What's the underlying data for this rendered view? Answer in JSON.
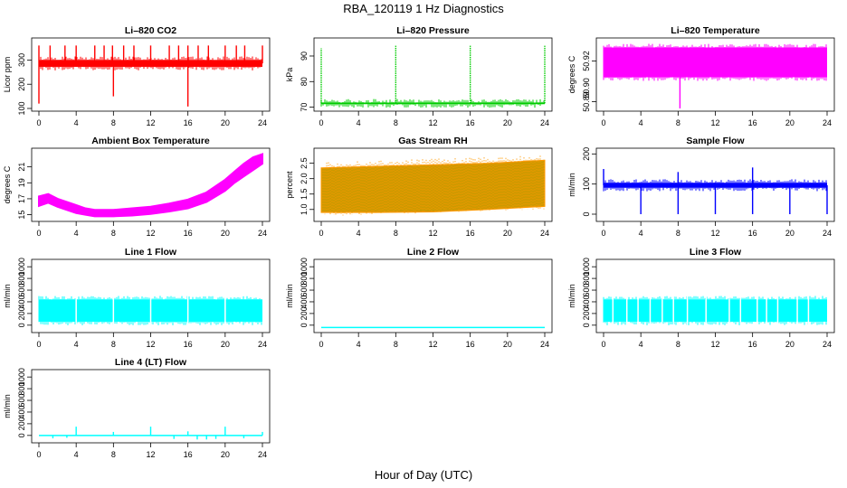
{
  "page": {
    "main_title": "RBA_120119  1 Hz Diagnostics",
    "x_axis_label": "Hour of Day (UTC)"
  },
  "chart_data": [
    {
      "type": "line",
      "title": "Li–820 CO2",
      "ylabel": "Licor ppm",
      "color": "#ff0000",
      "xlim": [
        0,
        24
      ],
      "xticks": [
        0,
        4,
        8,
        12,
        16,
        20,
        24
      ],
      "xtick_labels": [
        "0",
        "4",
        "8",
        "12",
        "16",
        "20",
        "24"
      ],
      "ylim": [
        100,
        380
      ],
      "yticks": [
        100,
        200,
        300
      ],
      "ytick_labels": [
        "100",
        "200",
        "300"
      ],
      "band": {
        "start": 0,
        "end": 24,
        "lo": 272,
        "hi": 300
      },
      "spikes": [
        [
          0,
          120
        ],
        [
          0,
          360
        ],
        [
          1.2,
          360
        ],
        [
          2.8,
          360
        ],
        [
          4,
          360
        ],
        [
          6,
          360
        ],
        [
          7,
          360
        ],
        [
          7.9,
          360
        ],
        [
          8,
          150
        ],
        [
          9.1,
          360
        ],
        [
          10.2,
          360
        ],
        [
          12,
          360
        ],
        [
          14,
          360
        ],
        [
          15,
          360
        ],
        [
          16,
          108
        ],
        [
          16,
          360
        ],
        [
          17.1,
          360
        ],
        [
          18.2,
          360
        ],
        [
          20,
          360
        ],
        [
          21.2,
          360
        ],
        [
          22.1,
          360
        ],
        [
          24,
          360
        ]
      ]
    },
    {
      "type": "line",
      "title": "Li–820 Pressure",
      "ylabel": "kPa",
      "color": "#00cc00",
      "xlim": [
        0,
        24
      ],
      "xticks": [
        0,
        4,
        8,
        12,
        16,
        20,
        24
      ],
      "xtick_labels": [
        "0",
        "4",
        "8",
        "12",
        "16",
        "20",
        "24"
      ],
      "ylim": [
        69.5,
        96
      ],
      "yticks": [
        70,
        80,
        90
      ],
      "ytick_labels": [
        "70",
        "80",
        "90"
      ],
      "band": {
        "start": 0,
        "end": 24,
        "lo": 71.2,
        "hi": 71.8
      },
      "spikes": [
        [
          0,
          93
        ],
        [
          8,
          94
        ],
        [
          16,
          94
        ],
        [
          24,
          94
        ]
      ]
    },
    {
      "type": "line",
      "title": "Li–820 Temperature",
      "ylabel": "degrees C",
      "color": "#ff00ff",
      "xlim": [
        0,
        24
      ],
      "xticks": [
        0,
        4,
        8,
        12,
        16,
        20,
        24
      ],
      "xtick_labels": [
        "0",
        "4",
        "8",
        "12",
        "16",
        "20",
        "24"
      ],
      "ylim": [
        50.885,
        50.935
      ],
      "yticks": [
        50.89,
        50.92
      ],
      "ytick_labels": [
        "50.89",
        "50.92"
      ],
      "extra_ytick_labels": [
        "50.90"
      ],
      "band": {
        "start": 0,
        "end": 24,
        "lo": 50.908,
        "hi": 50.93
      },
      "spikes": [
        [
          8.2,
          50.885
        ]
      ]
    },
    {
      "type": "line",
      "title": "Ambient Box Temperature",
      "ylabel": "degrees C",
      "color": "#ff00ff",
      "xlim": [
        0,
        24
      ],
      "xticks": [
        0,
        4,
        8,
        12,
        16,
        20,
        24
      ],
      "xtick_labels": [
        "0",
        "4",
        "8",
        "12",
        "16",
        "20",
        "24"
      ],
      "ylim": [
        14.5,
        23
      ],
      "yticks": [
        15,
        17,
        19,
        21
      ],
      "ytick_labels": [
        "15",
        "17",
        "19",
        "21"
      ],
      "curve_x": [
        0,
        1,
        2,
        3,
        4,
        5,
        6,
        8,
        10,
        12,
        14,
        16,
        18,
        19,
        20,
        21,
        22,
        23,
        24
      ],
      "curve_lo": [
        16.1,
        16.5,
        16.0,
        15.6,
        15.2,
        15.0,
        14.8,
        14.8,
        14.9,
        15.1,
        15.4,
        15.8,
        16.6,
        17.3,
        18.0,
        19.0,
        19.8,
        20.6,
        21.4
      ],
      "curve_hi": [
        17.3,
        17.6,
        17.0,
        16.6,
        16.2,
        15.8,
        15.6,
        15.6,
        15.8,
        16.0,
        16.4,
        16.9,
        17.8,
        18.6,
        19.4,
        20.4,
        21.4,
        22.2,
        22.6
      ]
    },
    {
      "type": "line",
      "title": "Gas Stream RH",
      "ylabel": "percent",
      "color": "#ff9900",
      "color2": "#cc9900",
      "xlim": [
        0,
        24
      ],
      "xticks": [
        0,
        4,
        8,
        12,
        16,
        20,
        24
      ],
      "xtick_labels": [
        "0",
        "4",
        "8",
        "12",
        "16",
        "20",
        "24"
      ],
      "ylim": [
        0.7,
        2.9
      ],
      "yticks": [
        1.0,
        1.5,
        2.0,
        2.5
      ],
      "ytick_labels": [
        "1.0",
        "1.5",
        "2.0",
        "2.5"
      ],
      "band_x": [
        0,
        6,
        12,
        18,
        24
      ],
      "band_lo": [
        0.9,
        0.9,
        0.92,
        1.0,
        1.1
      ],
      "band_hi": [
        2.35,
        2.4,
        2.45,
        2.5,
        2.6
      ]
    },
    {
      "type": "line",
      "title": "Sample Flow",
      "ylabel": "ml/min",
      "color": "#0000ff",
      "xlim": [
        0,
        24
      ],
      "xticks": [
        0,
        4,
        8,
        12,
        16,
        20,
        24
      ],
      "xtick_labels": [
        "0",
        "4",
        "8",
        "12",
        "16",
        "20",
        "24"
      ],
      "ylim": [
        -15,
        210
      ],
      "yticks": [
        0,
        100,
        200
      ],
      "ytick_labels": [
        "0",
        "100",
        "200"
      ],
      "band": {
        "start": 0,
        "end": 24,
        "lo": 88,
        "hi": 104
      },
      "spikes": [
        [
          0,
          150
        ],
        [
          4,
          0
        ],
        [
          8,
          140
        ],
        [
          8,
          0
        ],
        [
          12,
          0
        ],
        [
          12,
          105
        ],
        [
          16,
          155
        ],
        [
          16,
          0
        ],
        [
          20,
          0
        ],
        [
          24,
          0
        ]
      ]
    },
    {
      "type": "line",
      "title": "Line 1 Flow",
      "ylabel": "ml/min",
      "color": "#00ffff",
      "xlim": [
        0,
        24
      ],
      "xticks": [
        0,
        4,
        8,
        12,
        16,
        20,
        24
      ],
      "xtick_labels": [
        "0",
        "4",
        "8",
        "12",
        "16",
        "20",
        "24"
      ],
      "ylim": [
        -80,
        1080
      ],
      "yticks": [
        0,
        200,
        400,
        600,
        800,
        1000
      ],
      "ytick_labels": [
        "0",
        "200",
        "400",
        "600",
        "800",
        "1000"
      ],
      "band": {
        "start": 0,
        "end": 24,
        "lo": 60,
        "hi": 440
      },
      "gaps": [
        4,
        8,
        12,
        16,
        20
      ]
    },
    {
      "type": "line",
      "title": "Line 2 Flow",
      "ylabel": "ml/min",
      "color": "#00ffff",
      "xlim": [
        0,
        24
      ],
      "xticks": [
        0,
        4,
        8,
        12,
        16,
        20,
        24
      ],
      "xtick_labels": [
        "0",
        "4",
        "8",
        "12",
        "16",
        "20",
        "24"
      ],
      "ylim": [
        -80,
        1080
      ],
      "yticks": [
        0,
        200,
        400,
        600,
        800,
        1000
      ],
      "ytick_labels": [
        "0",
        "200",
        "400",
        "600",
        "800",
        "1000"
      ],
      "flat": -40
    },
    {
      "type": "line",
      "title": "Line 3 Flow",
      "ylabel": "ml/min",
      "color": "#00ffff",
      "xlim": [
        0,
        24
      ],
      "xticks": [
        0,
        4,
        8,
        12,
        16,
        20,
        24
      ],
      "xtick_labels": [
        "0",
        "4",
        "8",
        "12",
        "16",
        "20",
        "24"
      ],
      "ylim": [
        -80,
        1080
      ],
      "yticks": [
        0,
        200,
        400,
        600,
        800,
        1000
      ],
      "ytick_labels": [
        "0",
        "200",
        "400",
        "600",
        "800",
        "1000"
      ],
      "band": {
        "start": 0,
        "end": 24,
        "lo": 60,
        "hi": 440
      },
      "gaps": [
        1,
        2.5,
        3.7,
        5,
        6.3,
        7.5,
        9,
        11,
        13.5,
        14.7,
        16.5,
        17.5,
        18.7,
        20.8,
        22
      ]
    },
    {
      "type": "line",
      "title": "Line 4 (LT) Flow",
      "ylabel": "ml/min",
      "color": "#00ffff",
      "xlim": [
        0,
        24
      ],
      "xticks": [
        0,
        4,
        8,
        12,
        16,
        20,
        24
      ],
      "xtick_labels": [
        "0",
        "4",
        "8",
        "12",
        "16",
        "20",
        "24"
      ],
      "ylim": [
        -80,
        1080
      ],
      "yticks": [
        0,
        200,
        400,
        600,
        800,
        1000
      ],
      "ytick_labels": [
        "0",
        "200",
        "400",
        "600",
        "800",
        "1000"
      ],
      "flat": 0,
      "spikes": [
        [
          4,
          150
        ],
        [
          8,
          60
        ],
        [
          12,
          150
        ],
        [
          16,
          70
        ],
        [
          20,
          150
        ],
        [
          24,
          60
        ],
        [
          1.5,
          -50
        ],
        [
          3,
          -40
        ],
        [
          14.5,
          -60
        ],
        [
          17,
          -70
        ],
        [
          18,
          -70
        ],
        [
          19,
          -60
        ],
        [
          22,
          -50
        ]
      ]
    }
  ]
}
